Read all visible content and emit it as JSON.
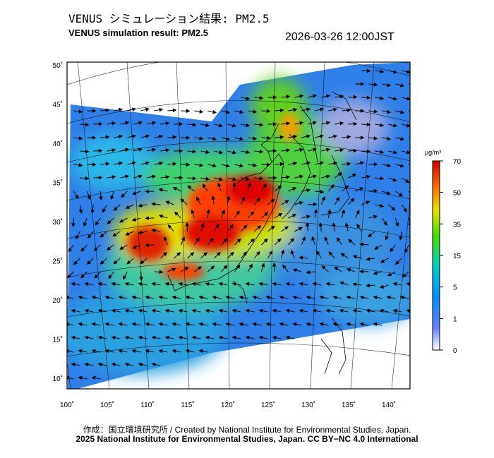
{
  "header": {
    "title_jp": "VENUS シミュレーション結果: PM2.5",
    "title_en": "VENUS simulation result: PM2.5",
    "timestamp": "2026-03-26 12:00JST"
  },
  "map": {
    "lon_ticks": [
      "100˚",
      "105˚",
      "110˚",
      "115˚",
      "120˚",
      "125˚",
      "130˚",
      "135˚",
      "140˚"
    ],
    "lat_ticks": [
      "50˚",
      "45˚",
      "40˚",
      "35˚",
      "30˚",
      "25˚",
      "20˚",
      "15˚",
      "10˚"
    ],
    "lon_values": [
      100,
      105,
      110,
      115,
      120,
      125,
      130,
      135,
      140
    ],
    "lat_values": [
      50,
      45,
      40,
      35,
      30,
      25,
      20,
      15,
      10
    ]
  },
  "colorbar": {
    "unit": "μg/m³",
    "labels": [
      "70",
      "50",
      "35",
      "15",
      "5",
      "1",
      "0"
    ],
    "values": [
      70,
      50,
      35,
      15,
      5,
      1,
      0
    ],
    "colors": [
      "#d00000",
      "#ff6000",
      "#f0d000",
      "#50e000",
      "#00c8c0",
      "#2060ff",
      "#ffffff"
    ]
  },
  "footer": {
    "credit_1": "作成：国立環境研究所 / Created by National Institute for Environmental Studies, Japan.",
    "credit_2": "2025 National Institute for Environmental Studies, Japan. CC BY−NC 4.0 International"
  }
}
